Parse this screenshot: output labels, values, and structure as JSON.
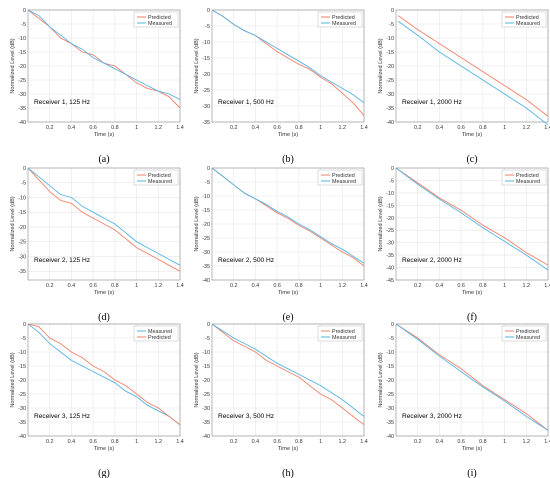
{
  "colors": {
    "Predicted": "#f0826a",
    "Measured": "#55b4e6",
    "grid": "#e6e6e6",
    "axis": "#999999"
  },
  "chart_data": [
    {
      "type": "line",
      "label": "(a)",
      "annotation": "Receiver 1, 125 Hz",
      "xlabel": "Time (s)",
      "ylabel": "Normalized Level (dB)",
      "xlim": [
        0,
        1.4
      ],
      "ylim": [
        -40,
        0
      ],
      "xticks": [
        "0.2",
        "0.4",
        "0.6",
        "0.8",
        "1",
        "1.2",
        "1.4"
      ],
      "yticks": [
        "0",
        "-5",
        "-10",
        "-15",
        "-20",
        "-25",
        "-30",
        "-35",
        "-40"
      ],
      "legend": {
        "position": "top-right",
        "entries": [
          "Predicted",
          "Measured"
        ]
      },
      "series": [
        {
          "name": "Predicted",
          "x": [
            0,
            0.1,
            0.2,
            0.3,
            0.4,
            0.5,
            0.6,
            0.7,
            0.8,
            0.9,
            1.0,
            1.1,
            1.2,
            1.3,
            1.4
          ],
          "y": [
            0,
            -3,
            -6,
            -10,
            -12,
            -15,
            -16,
            -19,
            -20,
            -23,
            -26,
            -28,
            -29,
            -31,
            -35
          ]
        },
        {
          "name": "Measured",
          "x": [
            0,
            0.1,
            0.2,
            0.3,
            0.4,
            0.5,
            0.6,
            0.7,
            0.8,
            0.9,
            1.0,
            1.1,
            1.2,
            1.3,
            1.4
          ],
          "y": [
            0,
            -2,
            -6,
            -9,
            -12,
            -14,
            -17,
            -19,
            -21,
            -23,
            -25,
            -27,
            -29,
            -30,
            -32
          ]
        }
      ]
    },
    {
      "type": "line",
      "label": "(b)",
      "annotation": "Receiver 1, 500 Hz",
      "xlabel": "Time (s)",
      "ylabel": "Normalized Level (dB)",
      "xlim": [
        0,
        1.4
      ],
      "ylim": [
        -35,
        0
      ],
      "xticks": [
        "0.2",
        "0.4",
        "0.6",
        "0.8",
        "1",
        "1.2",
        "1.4"
      ],
      "yticks": [
        "0",
        "-5",
        "-10",
        "-15",
        "-20",
        "-25",
        "-30",
        "-35"
      ],
      "legend": {
        "position": "top-right",
        "entries": [
          "Predicted",
          "Measured"
        ]
      },
      "series": [
        {
          "name": "Predicted",
          "x": [
            0,
            0.1,
            0.2,
            0.3,
            0.4,
            0.5,
            0.6,
            0.7,
            0.8,
            0.9,
            1.0,
            1.1,
            1.2,
            1.3,
            1.4
          ],
          "y": [
            0,
            -2,
            -4.5,
            -6.5,
            -8,
            -10.5,
            -13,
            -15,
            -17,
            -18.5,
            -21,
            -23,
            -26,
            -29,
            -33
          ]
        },
        {
          "name": "Measured",
          "x": [
            0,
            0.1,
            0.2,
            0.3,
            0.4,
            0.5,
            0.6,
            0.7,
            0.8,
            0.9,
            1.0,
            1.1,
            1.2,
            1.3,
            1.4
          ],
          "y": [
            0,
            -2,
            -4.5,
            -6.5,
            -8,
            -10,
            -12,
            -14,
            -16,
            -18,
            -20.5,
            -22.5,
            -24.5,
            -26.5,
            -29
          ]
        }
      ]
    },
    {
      "type": "line",
      "label": "(c)",
      "annotation": "Receiver 1, 2000 Hz",
      "xlabel": "Time (s)",
      "ylabel": "Normalized Level (dB)",
      "xlim": [
        0,
        1.4
      ],
      "ylim": [
        -40,
        0
      ],
      "xticks": [
        "0.2",
        "0.4",
        "0.6",
        "0.8",
        "1",
        "1.2",
        "1.4"
      ],
      "yticks": [
        "0",
        "-5",
        "-10",
        "-15",
        "-20",
        "-25",
        "-30",
        "-35",
        "-40"
      ],
      "legend": {
        "position": "top-right",
        "entries": [
          "Predicted",
          "Measured"
        ]
      },
      "series": [
        {
          "name": "Predicted",
          "x": [
            0.02,
            0.2,
            0.4,
            0.6,
            0.8,
            1.0,
            1.2,
            1.4
          ],
          "y": [
            -2,
            -7,
            -12,
            -17,
            -22,
            -27,
            -32,
            -38
          ]
        },
        {
          "name": "Measured",
          "x": [
            0.02,
            0.2,
            0.4,
            0.6,
            0.8,
            1.0,
            1.2,
            1.4
          ],
          "y": [
            -4,
            -9,
            -15,
            -20,
            -25,
            -30,
            -35,
            -41
          ]
        }
      ]
    },
    {
      "type": "line",
      "label": "(d)",
      "annotation": "Receiver 2, 125 Hz",
      "xlabel": "Time (s)",
      "ylabel": "Normalized Level (dB)",
      "xlim": [
        0,
        1.4
      ],
      "ylim": [
        -38,
        0
      ],
      "xticks": [
        "0.2",
        "0.4",
        "0.6",
        "0.8",
        "1",
        "1.2",
        "1.4"
      ],
      "yticks": [
        "0",
        "-5",
        "-10",
        "-15",
        "-20",
        "-25",
        "-30",
        "-35"
      ],
      "legend": {
        "position": "top-right",
        "entries": [
          "Predicted",
          "Measured"
        ]
      },
      "series": [
        {
          "name": "Predicted",
          "x": [
            0,
            0.1,
            0.2,
            0.3,
            0.4,
            0.5,
            0.6,
            0.7,
            0.8,
            0.9,
            1.0,
            1.1,
            1.2,
            1.3,
            1.4
          ],
          "y": [
            0,
            -4,
            -8,
            -11,
            -12,
            -15,
            -17,
            -19,
            -21,
            -24,
            -27,
            -29,
            -31,
            -33,
            -35
          ]
        },
        {
          "name": "Measured",
          "x": [
            0,
            0.1,
            0.2,
            0.3,
            0.4,
            0.5,
            0.6,
            0.7,
            0.8,
            0.9,
            1.0,
            1.1,
            1.2,
            1.3,
            1.4
          ],
          "y": [
            0,
            -3,
            -6,
            -9,
            -10,
            -13,
            -15,
            -17,
            -19,
            -22,
            -25,
            -27,
            -29,
            -31,
            -33
          ]
        }
      ]
    },
    {
      "type": "line",
      "label": "(e)",
      "annotation": "Receiver 2, 500 Hz",
      "xlabel": "Time (s)",
      "ylabel": "Normalized Level (dB)",
      "xlim": [
        0,
        1.4
      ],
      "ylim": [
        -40,
        0
      ],
      "xticks": [
        "0.2",
        "0.4",
        "0.6",
        "0.8",
        "1",
        "1.2",
        "1.4"
      ],
      "yticks": [
        "0",
        "-5",
        "-10",
        "-15",
        "-20",
        "-25",
        "-30",
        "-35",
        "-40"
      ],
      "legend": {
        "position": "top-right",
        "entries": [
          "Predicted",
          "Measured"
        ]
      },
      "series": [
        {
          "name": "Predicted",
          "x": [
            0,
            0.1,
            0.2,
            0.3,
            0.4,
            0.5,
            0.6,
            0.7,
            0.8,
            0.9,
            1.0,
            1.1,
            1.2,
            1.3,
            1.4
          ],
          "y": [
            0,
            -3,
            -6,
            -9,
            -11,
            -13.5,
            -16,
            -18,
            -20.5,
            -22.5,
            -25,
            -27.5,
            -30,
            -32,
            -35
          ]
        },
        {
          "name": "Measured",
          "x": [
            0,
            0.1,
            0.2,
            0.3,
            0.4,
            0.5,
            0.6,
            0.7,
            0.8,
            0.9,
            1.0,
            1.1,
            1.2,
            1.3,
            1.4
          ],
          "y": [
            0,
            -3,
            -6,
            -9,
            -11,
            -13,
            -15.5,
            -17.5,
            -20,
            -22,
            -24.5,
            -27,
            -29,
            -31.5,
            -34
          ]
        }
      ]
    },
    {
      "type": "line",
      "label": "(f)",
      "annotation": "Receiver 2, 2000 Hz",
      "xlabel": "Time (s)",
      "ylabel": "Normalized Level (dB)",
      "xlim": [
        0,
        1.4
      ],
      "ylim": [
        -45,
        0
      ],
      "xticks": [
        "0.2",
        "0.4",
        "0.6",
        "0.8",
        "1",
        "1.2",
        "1.4"
      ],
      "yticks": [
        "0",
        "-5",
        "-10",
        "-15",
        "-20",
        "-25",
        "-30",
        "-35",
        "-40",
        "-45"
      ],
      "legend": {
        "position": "top-right",
        "entries": [
          "Predicted",
          "Measured"
        ]
      },
      "series": [
        {
          "name": "Predicted",
          "x": [
            0,
            0.2,
            0.4,
            0.6,
            0.8,
            1.0,
            1.2,
            1.4
          ],
          "y": [
            0,
            -6,
            -12,
            -17,
            -23,
            -28,
            -34,
            -39
          ]
        },
        {
          "name": "Measured",
          "x": [
            0,
            0.2,
            0.4,
            0.6,
            0.8,
            1.0,
            1.2,
            1.4
          ],
          "y": [
            0,
            -6.5,
            -12.5,
            -18,
            -24,
            -29.5,
            -35,
            -41
          ]
        }
      ]
    },
    {
      "type": "line",
      "label": "(g)",
      "annotation": "Receiver 3, 125 Hz",
      "xlabel": "Time (s)",
      "ylabel": "Normalized Level (dB)",
      "xlim": [
        0,
        1.4
      ],
      "ylim": [
        -40,
        0
      ],
      "xticks": [
        "0.2",
        "0.4",
        "0.6",
        "0.8",
        "1",
        "1.2",
        "1.4"
      ],
      "yticks": [
        "0",
        "-5",
        "-10",
        "-15",
        "-20",
        "-25",
        "-30",
        "-35",
        "-40"
      ],
      "legend": {
        "position": "top-right",
        "entries": [
          "Measured",
          "Predicted"
        ]
      },
      "series": [
        {
          "name": "Measured",
          "x": [
            0,
            0.1,
            0.2,
            0.3,
            0.4,
            0.5,
            0.6,
            0.7,
            0.8,
            0.9,
            1.0,
            1.1,
            1.2,
            1.3,
            1.4
          ],
          "y": [
            0,
            -3,
            -7,
            -10,
            -13,
            -15,
            -17,
            -19,
            -21,
            -24,
            -26,
            -29,
            -31,
            -33,
            -36
          ]
        },
        {
          "name": "Predicted",
          "x": [
            0,
            0.1,
            0.2,
            0.3,
            0.4,
            0.5,
            0.6,
            0.7,
            0.8,
            0.9,
            1.0,
            1.1,
            1.2,
            1.3,
            1.4
          ],
          "y": [
            0,
            -1,
            -5,
            -7,
            -10,
            -12,
            -15,
            -17,
            -20,
            -22,
            -25,
            -28,
            -30,
            -33,
            -36
          ]
        }
      ]
    },
    {
      "type": "line",
      "label": "(h)",
      "annotation": "Receiver 3, 500 Hz",
      "xlabel": "Time (s)",
      "ylabel": "Normalized Level (dB)",
      "xlim": [
        0,
        1.4
      ],
      "ylim": [
        -40,
        0
      ],
      "xticks": [
        "0.2",
        "0.4",
        "0.6",
        "0.8",
        "1",
        "1.2",
        "1.4"
      ],
      "yticks": [
        "0",
        "-5",
        "-10",
        "-15",
        "-20",
        "-25",
        "-30",
        "-35",
        "-40"
      ],
      "legend": {
        "position": "top-right",
        "entries": [
          "Predicted",
          "Measured"
        ]
      },
      "series": [
        {
          "name": "Predicted",
          "x": [
            0,
            0.1,
            0.2,
            0.3,
            0.4,
            0.5,
            0.6,
            0.7,
            0.8,
            0.9,
            1.0,
            1.1,
            1.2,
            1.3,
            1.4
          ],
          "y": [
            0,
            -3,
            -6,
            -8,
            -10,
            -13,
            -15,
            -17,
            -19,
            -22,
            -25,
            -27,
            -30,
            -33,
            -36
          ]
        },
        {
          "name": "Measured",
          "x": [
            0,
            0.1,
            0.2,
            0.3,
            0.4,
            0.5,
            0.6,
            0.7,
            0.8,
            0.9,
            1.0,
            1.1,
            1.2,
            1.3,
            1.4
          ],
          "y": [
            0,
            -2.5,
            -5,
            -7,
            -9,
            -11.5,
            -14,
            -16,
            -18,
            -20,
            -22,
            -24.5,
            -27,
            -30,
            -33
          ]
        }
      ]
    },
    {
      "type": "line",
      "label": "(i)",
      "annotation": "Receiver 3, 2000 Hz",
      "xlabel": "Time (s)",
      "ylabel": "Normalized Level (dB)",
      "xlim": [
        0,
        1.4
      ],
      "ylim": [
        -40,
        0
      ],
      "xticks": [
        "0.2",
        "0.4",
        "0.6",
        "0.8",
        "1",
        "1.2",
        "1.4"
      ],
      "yticks": [
        "0",
        "-5",
        "-10",
        "-15",
        "-20",
        "-25",
        "-30",
        "-35",
        "-40"
      ],
      "legend": {
        "position": "top-right",
        "entries": [
          "Predicted",
          "Measured"
        ]
      },
      "series": [
        {
          "name": "Predicted",
          "x": [
            0,
            0.2,
            0.4,
            0.6,
            0.8,
            1.0,
            1.2,
            1.4
          ],
          "y": [
            0,
            -5,
            -11,
            -16,
            -22,
            -27,
            -32,
            -38
          ]
        },
        {
          "name": "Measured",
          "x": [
            0,
            0.2,
            0.4,
            0.6,
            0.8,
            1.0,
            1.2,
            1.4
          ],
          "y": [
            0,
            -5.5,
            -11.5,
            -17,
            -22.5,
            -27.5,
            -33,
            -38
          ]
        }
      ]
    }
  ]
}
